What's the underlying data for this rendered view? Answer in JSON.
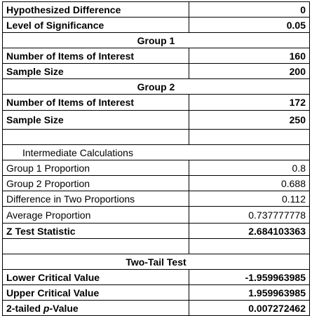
{
  "inputs": {
    "hypothesized_difference": {
      "label": "Hypothesized Difference",
      "value": "0"
    },
    "level_of_significance": {
      "label": "Level of Significance",
      "value": "0.05"
    }
  },
  "group1": {
    "header": "Group 1",
    "items_of_interest": {
      "label": "Number of Items of Interest",
      "value": "160"
    },
    "sample_size": {
      "label": "Sample Size",
      "value": "200"
    }
  },
  "group2": {
    "header": "Group 2",
    "items_of_interest": {
      "label": "Number of Items of Interest",
      "value": "172"
    },
    "sample_size": {
      "label": "Sample Size",
      "value": "250"
    }
  },
  "intermediate": {
    "header": "Intermediate Calculations",
    "group1_proportion": {
      "label": "Group 1 Proportion",
      "value": "0.8"
    },
    "group2_proportion": {
      "label": "Group 2 Proportion",
      "value": "0.688"
    },
    "difference": {
      "label": "Difference in Two Proportions",
      "value": "0.112"
    },
    "average_proportion": {
      "label": "Average Proportion",
      "value": "0.737777778"
    },
    "z_statistic": {
      "label": "Z Test Statistic",
      "value": "2.684103363"
    }
  },
  "two_tail": {
    "header": "Two-Tail Test",
    "lower_critical": {
      "label": "Lower Critical Value",
      "value": "-1.959963985"
    },
    "upper_critical": {
      "label": "Upper Critical Value",
      "value": "1.959963985"
    },
    "p_value": {
      "label_prefix": "2-tailed ",
      "label_italic": "p",
      "label_suffix": "-Value",
      "value": "0.007272462"
    }
  }
}
